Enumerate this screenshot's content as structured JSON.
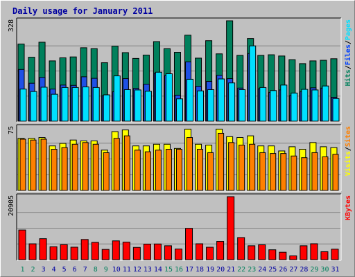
{
  "colors": {
    "background": "#c0c0c0",
    "panel": "#c0c0c0",
    "title": "#0000a0",
    "hits": "#00805c",
    "files": "#0040ff",
    "pages": "#00e0ff",
    "visits": "#ffff00",
    "sites": "#ff8000",
    "kbytes": "#ff0000",
    "weekend_day": "#00805c",
    "weekday": "#0000a0"
  },
  "chart_data": {
    "type": "bar",
    "title": "Daily usage for January 2011",
    "categories": [
      "1",
      "2",
      "3",
      "4",
      "5",
      "6",
      "7",
      "8",
      "9",
      "10",
      "11",
      "12",
      "13",
      "14",
      "15",
      "16",
      "17",
      "18",
      "19",
      "20",
      "21",
      "22",
      "23",
      "24",
      "25",
      "26",
      "27",
      "28",
      "29",
      "30",
      "31"
    ],
    "weekend_days": [
      "1",
      "2",
      "8",
      "9",
      "15",
      "16",
      "22",
      "23",
      "29",
      "30"
    ],
    "panels": [
      {
        "id": "hits-files-pages",
        "max_label": "328",
        "ylim": [
          0,
          328
        ],
        "legend": [
          {
            "text": "Hits",
            "color": "#00805c"
          },
          {
            "text": "/",
            "color": "#000000"
          },
          {
            "text": "Files",
            "color": "#0040ff"
          },
          {
            "text": "/",
            "color": "#000000"
          },
          {
            "text": "Pages",
            "color": "#00e0ff"
          }
        ],
        "series": [
          {
            "name": "Hits",
            "color": "#00805c",
            "values": [
              252,
              209,
              258,
              197,
              207,
              210,
              240,
              237,
              191,
              245,
              224,
              205,
              216,
              260,
              237,
              225,
              281,
              206,
              263,
              220,
              328,
              215,
              270,
              215,
              217,
              213,
              201,
              188,
              197,
              199,
              204
            ]
          },
          {
            "name": "Files",
            "color": "#1e50e6",
            "values": [
              169,
              124,
              143,
              105,
              118,
              117,
              145,
              140,
              83,
              96,
              139,
              107,
              121,
              157,
              149,
              85,
              194,
              114,
              130,
              150,
              139,
              108,
              221,
              106,
              94,
              102,
              84,
              96,
              109,
              108,
              78
            ]
          },
          {
            "name": "Pages",
            "color": "#00e0ff",
            "values": [
              105,
              97,
              111,
              88,
              110,
              110,
              112,
              110,
              86,
              148,
              103,
              102,
              98,
              160,
              155,
              73,
              137,
              99,
              103,
              138,
              125,
              103,
              246,
              110,
              100,
              118,
              92,
              104,
              102,
              115,
              74
            ]
          }
        ]
      },
      {
        "id": "visits-sites",
        "max_label": "75",
        "ylim": [
          0,
          75
        ],
        "legend": [
          {
            "text": "Visits",
            "color": "#ffff00"
          },
          {
            "text": "/",
            "color": "#000000"
          },
          {
            "text": "Sites",
            "color": "#ff8000"
          }
        ],
        "series": [
          {
            "name": "Visits",
            "color": "#ffff00",
            "values": [
              62,
              62,
              63,
              53,
              56,
              60,
              59,
              59,
              48,
              70,
              72,
              53,
              53,
              55,
              55,
              50,
              73,
              55,
              54,
              73,
              64,
              63,
              65,
              53,
              53,
              47,
              52,
              49,
              57,
              52,
              51
            ]
          },
          {
            "name": "Sites",
            "color": "#ff8000",
            "values": [
              61,
              60,
              61,
              49,
              51,
              55,
              57,
              55,
              45,
              62,
              65,
              48,
              46,
              48,
              49,
              49,
              63,
              49,
              45,
              68,
              57,
              54,
              55,
              45,
              44,
              44,
              41,
              39,
              45,
              40,
              43
            ]
          }
        ]
      },
      {
        "id": "kbytes",
        "max_label": "20905",
        "ylim": [
          0,
          20905
        ],
        "legend": [
          {
            "text": "KBytes",
            "color": "#ff0000"
          }
        ],
        "series": [
          {
            "name": "KBytes",
            "color": "#ff0000",
            "values": [
              9850,
              5270,
              6970,
              4310,
              4990,
              4150,
              6700,
              5740,
              3410,
              6250,
              5820,
              4080,
              5170,
              5210,
              4620,
              3550,
              10400,
              5280,
              4130,
              6080,
              20905,
              7340,
              4620,
              4930,
              3290,
              2480,
              1280,
              4620,
              5290,
              2660,
              3490
            ]
          }
        ]
      }
    ]
  }
}
